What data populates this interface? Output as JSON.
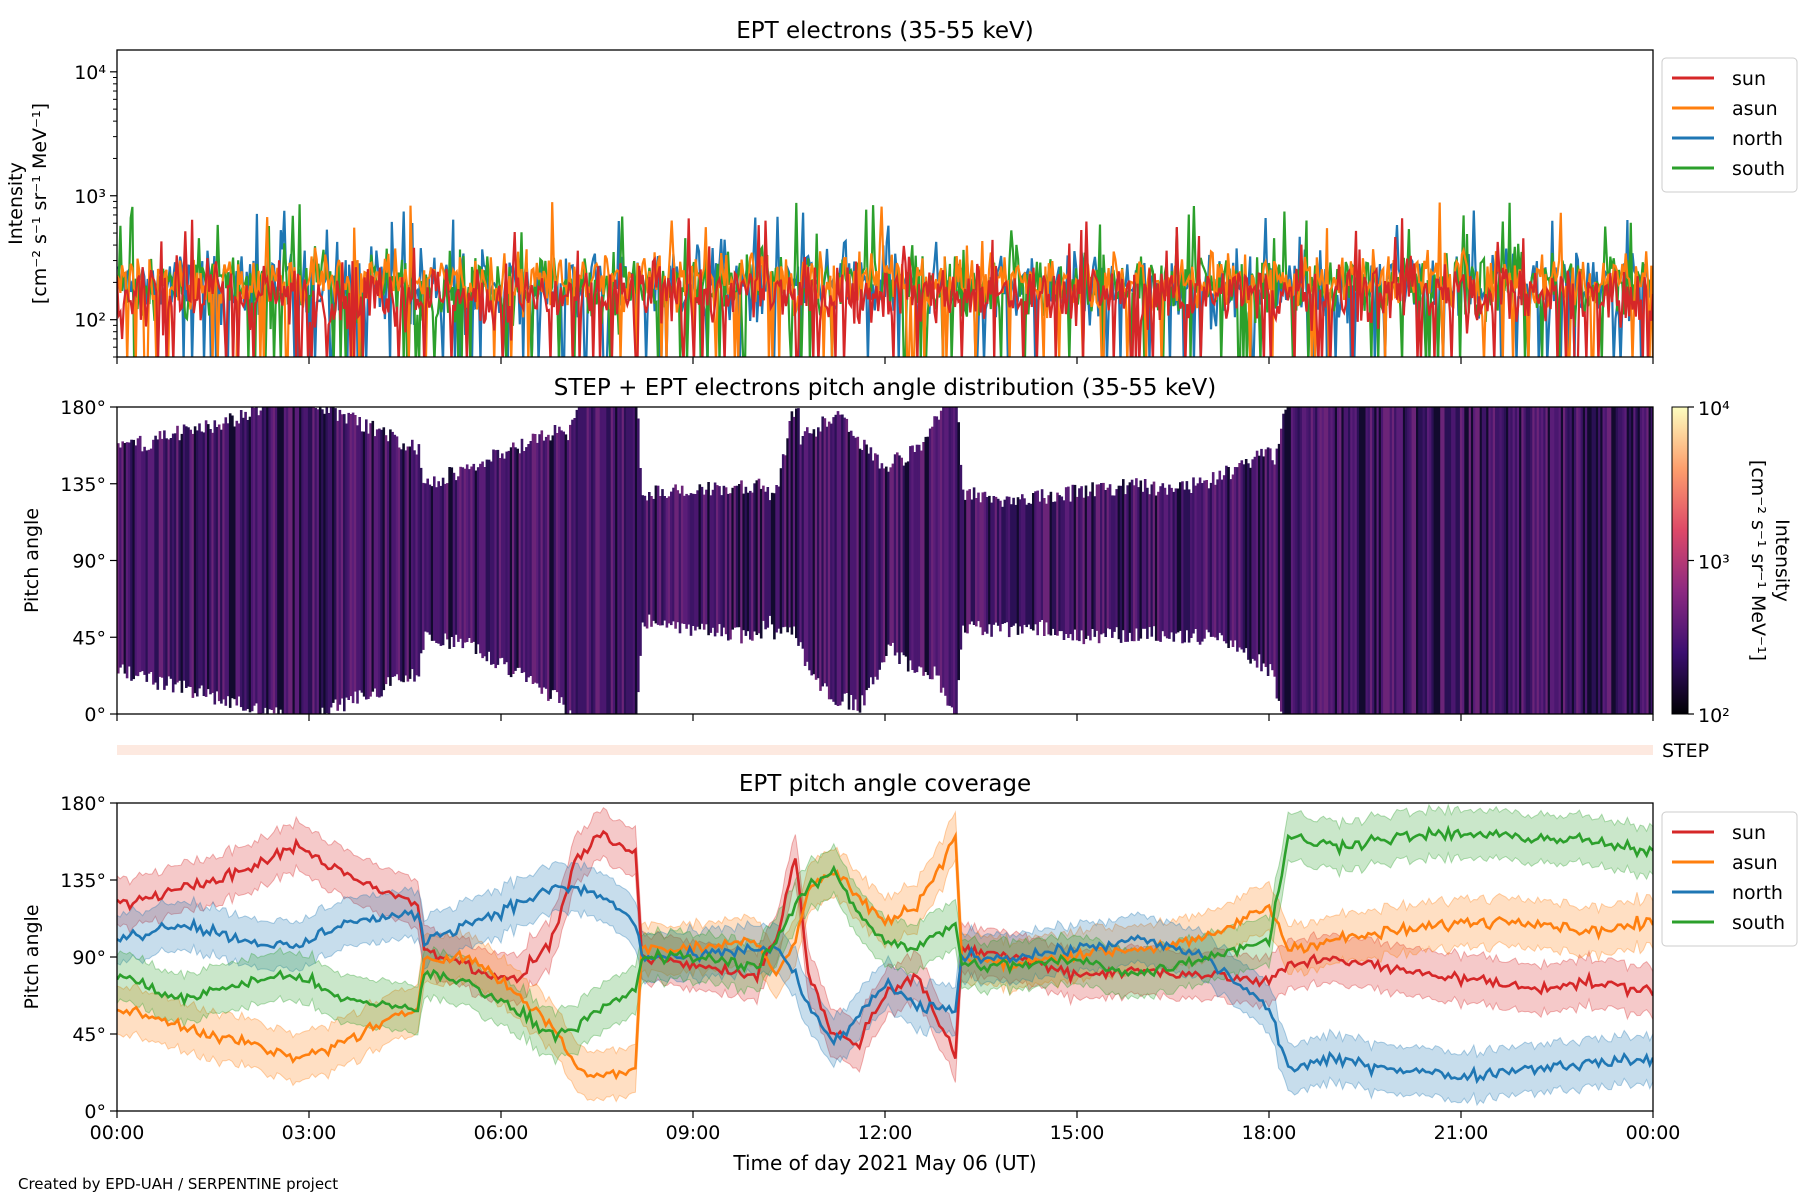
{
  "footer": "Created by EPD-UAH / SERPENTINE project",
  "chart_data": [
    {
      "type": "line",
      "title": "EPT electrons (35-55 keV)",
      "ylabel_line1": "Intensity",
      "ylabel_line2": "[cm⁻² s⁻¹ sr⁻¹ MeV⁻¹]",
      "yscale": "log",
      "ylim": [
        50,
        15000
      ],
      "yticks": [
        {
          "value": 100,
          "label": "10²"
        },
        {
          "value": 1000,
          "label": "10³"
        },
        {
          "value": 10000,
          "label": "10⁴"
        }
      ],
      "xlim": [
        0,
        24
      ],
      "legend_position": "outside-right-top",
      "series": [
        {
          "name": "sun",
          "color": "#d62728",
          "base": 160,
          "spread": 0.28,
          "spike": 600
        },
        {
          "name": "asun",
          "color": "#ff7f0e",
          "base": 210,
          "spread": 0.25,
          "spike": 900
        },
        {
          "name": "north",
          "color": "#1f77b4",
          "base": 190,
          "spread": 0.3,
          "spike": 700
        },
        {
          "name": "south",
          "color": "#2ca02c",
          "base": 190,
          "spread": 0.3,
          "spike": 800
        }
      ]
    },
    {
      "type": "heatmap",
      "title": "STEP + EPT electrons pitch angle distribution (35-55 keV)",
      "ylabel": "Pitch angle",
      "ylim": [
        0,
        180
      ],
      "yticks": [
        {
          "value": 0,
          "label": "0°"
        },
        {
          "value": 45,
          "label": "45°"
        },
        {
          "value": 90,
          "label": "90°"
        },
        {
          "value": 135,
          "label": "135°"
        },
        {
          "value": 180,
          "label": "180°"
        }
      ],
      "xlim": [
        0,
        24
      ],
      "colorbar": {
        "label_line1": "Intensity",
        "label_line2": "[cm⁻² s⁻¹ sr⁻¹ MeV⁻¹]",
        "scale": "log",
        "range": [
          100,
          10000
        ],
        "ticks": [
          {
            "value": 100,
            "label": "10²"
          },
          {
            "value": 1000,
            "label": "10³"
          },
          {
            "value": 10000,
            "label": "10⁴"
          }
        ],
        "colormap": [
          "#000004",
          "#3b0f70",
          "#8c2981",
          "#de4968",
          "#fe9f6d",
          "#fcfdbf"
        ]
      },
      "fill_color": "#3a1f66"
    },
    {
      "type": "bar",
      "label": "STEP",
      "color": "#fde9e0"
    },
    {
      "type": "line",
      "title": "EPT pitch angle coverage",
      "ylabel": "Pitch angle",
      "xlabel": "Time of day 2021 May 06 (UT)",
      "ylim": [
        0,
        180
      ],
      "yticks": [
        {
          "value": 0,
          "label": "0°"
        },
        {
          "value": 45,
          "label": "45°"
        },
        {
          "value": 90,
          "label": "90°"
        },
        {
          "value": 135,
          "label": "135°"
        },
        {
          "value": 180,
          "label": "180°"
        }
      ],
      "xlim": [
        0,
        24
      ],
      "xticks": [
        {
          "value": 0,
          "label": "00:00"
        },
        {
          "value": 3,
          "label": "03:00"
        },
        {
          "value": 6,
          "label": "06:00"
        },
        {
          "value": 9,
          "label": "09:00"
        },
        {
          "value": 12,
          "label": "12:00"
        },
        {
          "value": 15,
          "label": "15:00"
        },
        {
          "value": 18,
          "label": "18:00"
        },
        {
          "value": 21,
          "label": "21:00"
        },
        {
          "value": 24,
          "label": "00:00"
        }
      ],
      "legend_position": "outside-right-top",
      "series": [
        {
          "name": "sun",
          "color": "#d62728",
          "band": "#d62728",
          "points": [
            [
              0,
              120
            ],
            [
              1,
              130
            ],
            [
              2,
              140
            ],
            [
              2.8,
              155
            ],
            [
              3.5,
              140
            ],
            [
              4.7,
              120
            ],
            [
              4.8,
              95
            ],
            [
              5.5,
              85
            ],
            [
              6.2,
              75
            ],
            [
              6.8,
              100
            ],
            [
              7.2,
              150
            ],
            [
              7.6,
              160
            ],
            [
              8.1,
              150
            ],
            [
              8.2,
              90
            ],
            [
              9,
              85
            ],
            [
              10,
              80
            ],
            [
              10.3,
              100
            ],
            [
              10.6,
              150
            ],
            [
              10.8,
              80
            ],
            [
              11.2,
              45
            ],
            [
              11.6,
              40
            ],
            [
              12,
              70
            ],
            [
              12.5,
              80
            ],
            [
              13.1,
              30
            ],
            [
              13.2,
              95
            ],
            [
              14,
              90
            ],
            [
              15,
              80
            ],
            [
              16,
              82
            ],
            [
              17,
              80
            ],
            [
              18,
              75
            ],
            [
              18.3,
              85
            ],
            [
              19,
              90
            ],
            [
              20,
              82
            ],
            [
              21,
              78
            ],
            [
              22,
              72
            ],
            [
              23,
              75
            ],
            [
              24,
              70
            ]
          ]
        },
        {
          "name": "asun",
          "color": "#ff7f0e",
          "band": "#ff7f0e",
          "points": [
            [
              0,
              60
            ],
            [
              1,
              50
            ],
            [
              2,
              40
            ],
            [
              2.8,
              30
            ],
            [
              3.5,
              40
            ],
            [
              4.7,
              60
            ],
            [
              4.8,
              90
            ],
            [
              5.5,
              90
            ],
            [
              6.2,
              70
            ],
            [
              6.8,
              50
            ],
            [
              7.2,
              25
            ],
            [
              7.6,
              20
            ],
            [
              8.1,
              25
            ],
            [
              8.2,
              95
            ],
            [
              9,
              95
            ],
            [
              10,
              100
            ],
            [
              10.3,
              80
            ],
            [
              10.6,
              100
            ],
            [
              10.8,
              130
            ],
            [
              11.2,
              140
            ],
            [
              11.6,
              125
            ],
            [
              12,
              110
            ],
            [
              12.5,
              120
            ],
            [
              13.1,
              160
            ],
            [
              13.2,
              90
            ],
            [
              14,
              85
            ],
            [
              15,
              92
            ],
            [
              16,
              95
            ],
            [
              17,
              100
            ],
            [
              18,
              120
            ],
            [
              18.3,
              95
            ],
            [
              19,
              100
            ],
            [
              20,
              105
            ],
            [
              21,
              110
            ],
            [
              22,
              112
            ],
            [
              23,
              105
            ],
            [
              24,
              110
            ]
          ]
        },
        {
          "name": "north",
          "color": "#1f77b4",
          "band": "#1f77b4",
          "points": [
            [
              0,
              100
            ],
            [
              1,
              110
            ],
            [
              2,
              100
            ],
            [
              2.8,
              95
            ],
            [
              3.5,
              110
            ],
            [
              4.7,
              115
            ],
            [
              4.8,
              100
            ],
            [
              5.5,
              110
            ],
            [
              6.2,
              120
            ],
            [
              6.8,
              130
            ],
            [
              7.2,
              130
            ],
            [
              7.6,
              125
            ],
            [
              8.1,
              110
            ],
            [
              8.2,
              90
            ],
            [
              9,
              90
            ],
            [
              10,
              95
            ],
            [
              10.3,
              95
            ],
            [
              10.6,
              80
            ],
            [
              10.8,
              60
            ],
            [
              11.2,
              40
            ],
            [
              11.6,
              55
            ],
            [
              12,
              75
            ],
            [
              12.5,
              60
            ],
            [
              13.1,
              60
            ],
            [
              13.2,
              90
            ],
            [
              14,
              90
            ],
            [
              15,
              95
            ],
            [
              16,
              100
            ],
            [
              17,
              90
            ],
            [
              18,
              60
            ],
            [
              18.3,
              25
            ],
            [
              19,
              30
            ],
            [
              20,
              25
            ],
            [
              21,
              20
            ],
            [
              22,
              25
            ],
            [
              23,
              28
            ],
            [
              24,
              30
            ]
          ]
        },
        {
          "name": "south",
          "color": "#2ca02c",
          "band": "#2ca02c",
          "points": [
            [
              0,
              80
            ],
            [
              1,
              65
            ],
            [
              2,
              75
            ],
            [
              2.8,
              80
            ],
            [
              3.5,
              65
            ],
            [
              4.7,
              60
            ],
            [
              4.8,
              80
            ],
            [
              5.5,
              75
            ],
            [
              6.2,
              60
            ],
            [
              6.8,
              45
            ],
            [
              7.2,
              50
            ],
            [
              7.6,
              60
            ],
            [
              8.1,
              70
            ],
            [
              8.2,
              90
            ],
            [
              9,
              90
            ],
            [
              10,
              85
            ],
            [
              10.3,
              100
            ],
            [
              10.6,
              120
            ],
            [
              10.8,
              130
            ],
            [
              11.2,
              140
            ],
            [
              11.6,
              115
            ],
            [
              12,
              100
            ],
            [
              12.5,
              95
            ],
            [
              13.1,
              110
            ],
            [
              13.2,
              85
            ],
            [
              14,
              85
            ],
            [
              15,
              88
            ],
            [
              16,
              80
            ],
            [
              17,
              90
            ],
            [
              18,
              100
            ],
            [
              18.3,
              160
            ],
            [
              19,
              155
            ],
            [
              20,
              160
            ],
            [
              21,
              162
            ],
            [
              22,
              160
            ],
            [
              23,
              158
            ],
            [
              24,
              150
            ]
          ]
        }
      ]
    }
  ]
}
